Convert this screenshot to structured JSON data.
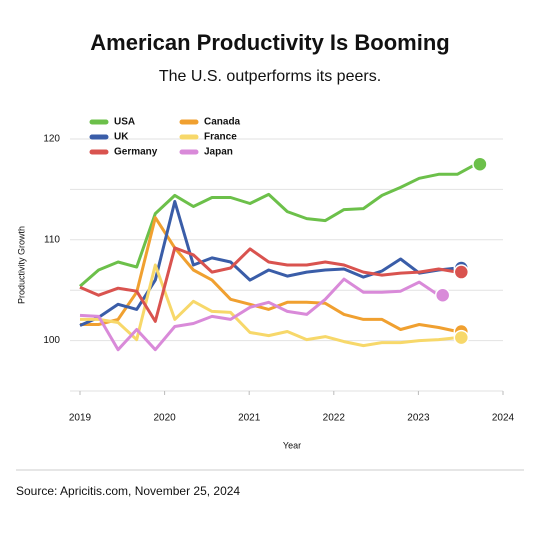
{
  "chart_data": {
    "type": "line",
    "title": "American Productivity Is Booming",
    "subtitle": "The U.S. outperforms its peers.",
    "x_label": "Year",
    "y_label": "Productivity Growth",
    "source": "Source: Apricitis.com, November 25, 2024",
    "x": [
      2019,
      2019.22,
      2019.45,
      2019.67,
      2019.89,
      2020.12,
      2020.34,
      2020.56,
      2020.78,
      2021.01,
      2021.23,
      2021.45,
      2021.68,
      2021.9,
      2022.12,
      2022.35,
      2022.57,
      2022.79,
      2023.01,
      2023.24,
      2023.46,
      2023.68
    ],
    "xlim": [
      2019,
      2024
    ],
    "xticks": [
      2019,
      2020,
      2021,
      2022,
      2023,
      2024
    ],
    "ylim": [
      95,
      120
    ],
    "yticks": [
      100,
      110,
      120
    ],
    "ygrid": [
      95,
      100,
      105,
      110,
      115,
      120
    ],
    "grid": true,
    "series": [
      {
        "name": "USA",
        "color": "#6cc04a",
        "values": [
          105.4,
          107.0,
          107.8,
          107.3,
          112.6,
          114.4,
          113.3,
          114.2,
          114.2,
          113.6,
          114.5,
          112.8,
          112.1,
          111.9,
          113.0,
          113.1,
          114.4,
          115.2,
          116.1,
          116.5,
          116.5,
          117.5
        ]
      },
      {
        "name": "Canada",
        "color": "#f0a030",
        "values": [
          101.6,
          101.6,
          102.1,
          104.8,
          112.2,
          109.2,
          107.0,
          106.0,
          104.1,
          103.6,
          103.1,
          103.8,
          103.8,
          103.7,
          102.6,
          102.1,
          102.1,
          101.1,
          101.6,
          101.3,
          100.9,
          null
        ]
      },
      {
        "name": "UK",
        "color": "#3a5da8",
        "values": [
          101.5,
          102.3,
          103.6,
          103.1,
          106.0,
          113.8,
          107.5,
          108.2,
          107.8,
          106.0,
          107.0,
          106.4,
          106.8,
          107.0,
          107.1,
          106.3,
          106.9,
          108.1,
          106.7,
          107.0,
          107.2,
          null
        ]
      },
      {
        "name": "France",
        "color": "#f7d86a",
        "values": [
          102.1,
          102.1,
          101.8,
          100.1,
          107.5,
          102.1,
          103.9,
          102.9,
          102.8,
          100.8,
          100.5,
          100.9,
          100.1,
          100.4,
          99.9,
          99.5,
          99.8,
          99.8,
          100.0,
          100.1,
          100.3,
          null
        ]
      },
      {
        "name": "Germany",
        "color": "#d9534f",
        "values": [
          105.3,
          104.5,
          105.2,
          104.9,
          101.9,
          109.2,
          108.5,
          106.8,
          107.2,
          109.1,
          107.8,
          107.5,
          107.5,
          107.8,
          107.5,
          106.8,
          106.5,
          106.7,
          106.8,
          107.1,
          106.8,
          null
        ]
      },
      {
        "name": "Japan",
        "color": "#d98ad9",
        "values": [
          102.5,
          102.4,
          99.1,
          101.1,
          99.1,
          101.4,
          101.7,
          102.4,
          102.1,
          103.3,
          103.8,
          102.9,
          102.6,
          104.1,
          106.1,
          104.8,
          104.8,
          104.9,
          105.8,
          104.5,
          null,
          null
        ]
      }
    ]
  }
}
